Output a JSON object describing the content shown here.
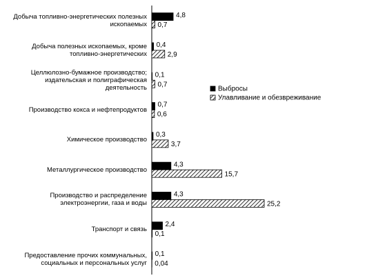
{
  "chart_data": {
    "type": "hbar",
    "categories": [
      "Добыча топливно-энергетических полезных ископаемых",
      "Добыча полезных ископаемых, кроме топливно-энергетических",
      "Целлюлозно-бумажное производство; издательская и полиграфическая деятельность",
      "Производство кокса и нефтепродуктов",
      "Химическое производство",
      "Металлургическое производство",
      "Производство и распределение электроэнергии, газа и воды",
      "Транспорт и связь",
      "Предоставление прочих коммунальных, социальных и персональных услуг"
    ],
    "series": [
      {
        "name": "Выбросы",
        "color": "#000000",
        "values": [
          4.8,
          0.4,
          0.1,
          0.7,
          0.3,
          4.3,
          4.3,
          2.4,
          0.1
        ],
        "value_labels": [
          "4,8",
          "0,4",
          "0,1",
          "0,7",
          "0,3",
          "4,3",
          "4,3",
          "2,4",
          "0,1"
        ]
      },
      {
        "name": "Улавливание и обезвреживание",
        "color": "hatch",
        "values": [
          0.7,
          2.9,
          0.7,
          0.6,
          3.7,
          15.7,
          25.2,
          0.1,
          0.04
        ],
        "value_labels": [
          "0,7",
          "2,9",
          "0,7",
          "0,6",
          "3,7",
          "15,7",
          "25,2",
          "0,1",
          "0,04"
        ]
      }
    ],
    "legend": "right"
  }
}
